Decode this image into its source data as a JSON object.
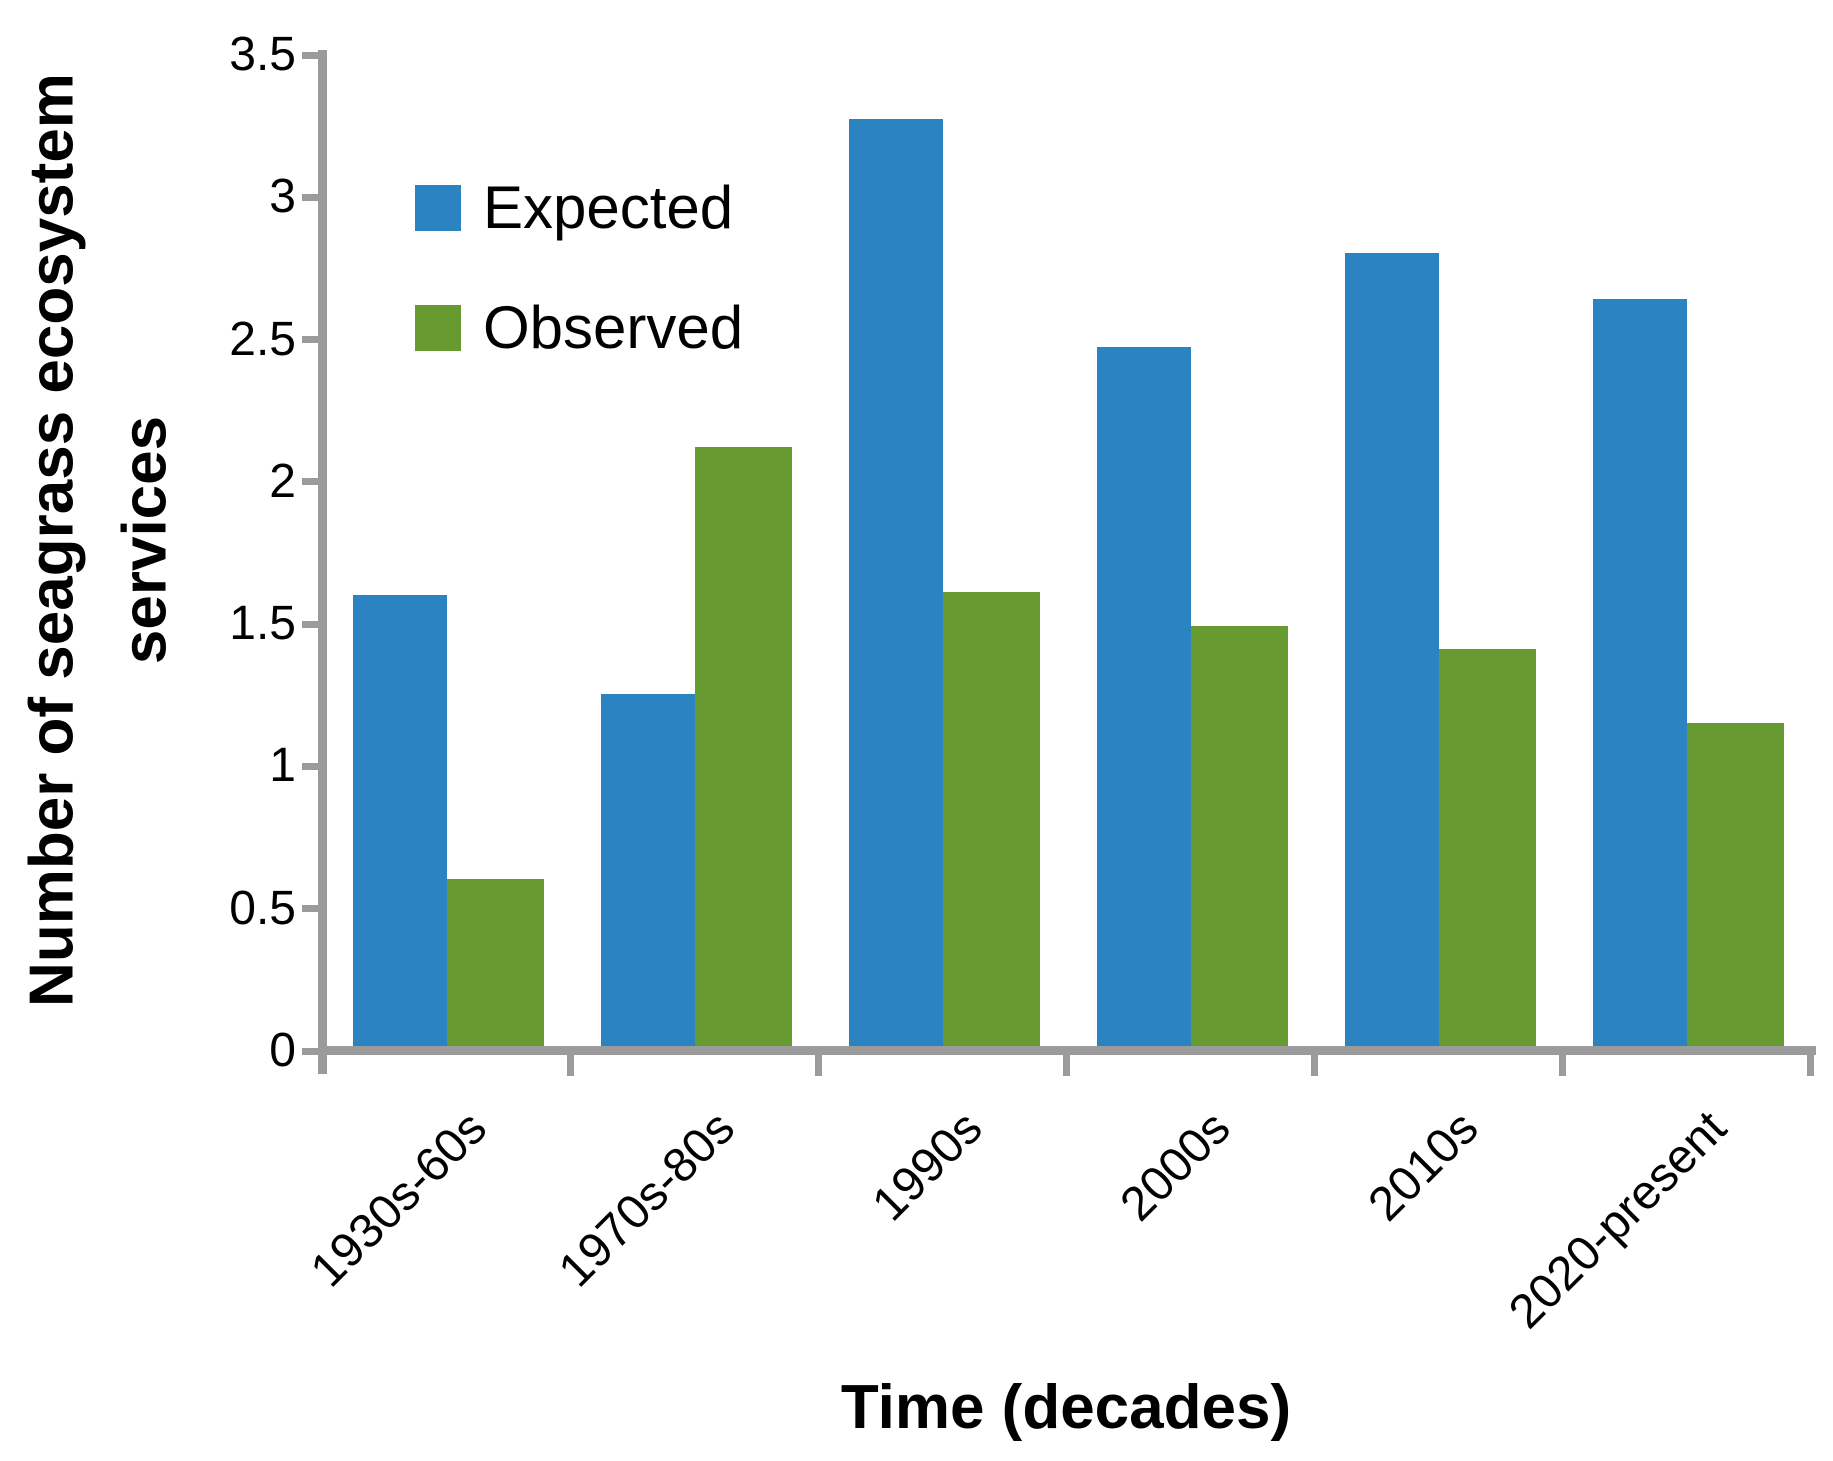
{
  "chart_data": {
    "type": "bar",
    "title": "",
    "categories": [
      "1930s-60s",
      "1970s-80s",
      "1990s",
      "2000s",
      "2010s",
      "2020-present"
    ],
    "series": [
      {
        "name": "Expected",
        "color": "#2b83c2",
        "values": [
          1.6,
          1.25,
          3.27,
          2.47,
          2.8,
          2.64
        ]
      },
      {
        "name": "Observed",
        "color": "#689a32",
        "values": [
          0.6,
          2.12,
          1.61,
          1.49,
          1.41,
          1.15
        ]
      }
    ],
    "xlabel": "Time (decades)",
    "ylabel": "Number of seagrass ecosystem services",
    "ylabel_lines": [
      "Number of seagrass ecosystem",
      "services"
    ],
    "ylim": [
      0,
      3.5
    ],
    "ytick_step": 0.5,
    "yticks": [
      "0",
      "0.5",
      "1",
      "1.5",
      "2",
      "2.5",
      "3",
      "3.5"
    ],
    "grid": false,
    "legend_position": "upper-left-inside"
  },
  "colors": {
    "expected": "#2b83c2",
    "observed": "#689a32",
    "axis": "#9b9b9b",
    "text": "#000000"
  }
}
